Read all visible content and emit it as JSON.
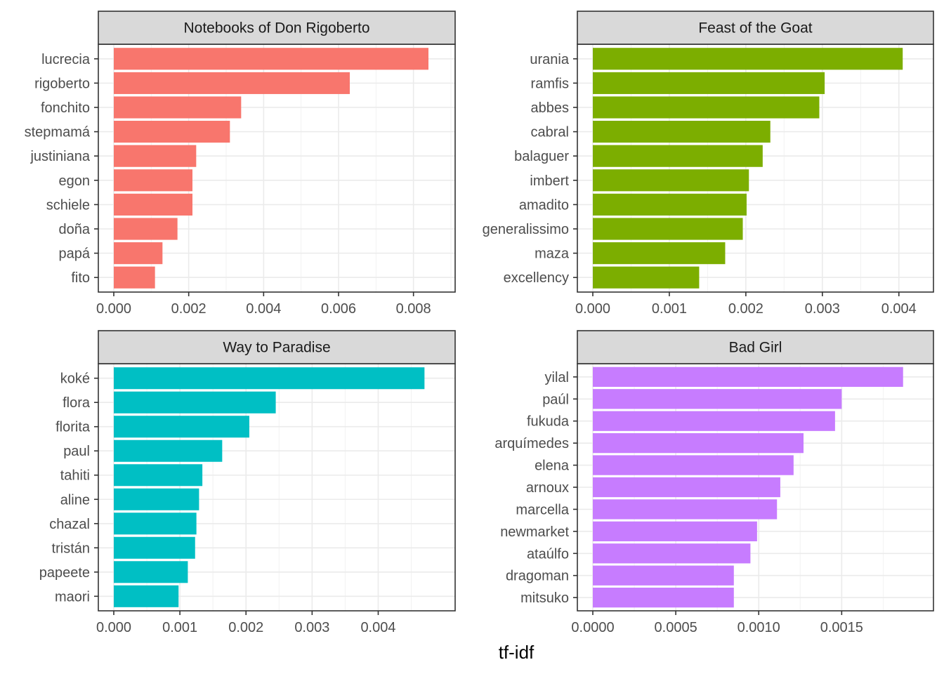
{
  "xlabel": "tf-idf",
  "chart_data": [
    {
      "type": "bar",
      "orientation": "horizontal",
      "title": "Notebooks of Don Rigoberto",
      "color": "#F8766D",
      "categories": [
        "lucrecia",
        "rigoberto",
        "fonchito",
        "stepmamá",
        "justiniana",
        "egon",
        "schiele",
        "doña",
        "papá",
        "fito"
      ],
      "values": [
        0.0084,
        0.0063,
        0.0034,
        0.0031,
        0.0022,
        0.0021,
        0.0021,
        0.0017,
        0.0013,
        0.0011
      ],
      "xlim": [
        0,
        0.0087
      ],
      "xticks": [
        0.0,
        0.002,
        0.004,
        0.006,
        0.008
      ],
      "xtick_labels": [
        "0.000",
        "0.002",
        "0.004",
        "0.006",
        "0.008"
      ],
      "grid": true
    },
    {
      "type": "bar",
      "orientation": "horizontal",
      "title": "Feast of the Goat",
      "color": "#7CAE00",
      "categories": [
        "urania",
        "ramfis",
        "abbes",
        "cabral",
        "balaguer",
        "imbert",
        "amadito",
        "generalissimo",
        "maza",
        "excellency"
      ],
      "values": [
        0.00405,
        0.00303,
        0.00296,
        0.00232,
        0.00222,
        0.00204,
        0.00201,
        0.00196,
        0.00173,
        0.00139
      ],
      "xlim": [
        0,
        0.00425
      ],
      "xticks": [
        0.0,
        0.001,
        0.002,
        0.003,
        0.004
      ],
      "xtick_labels": [
        "0.000",
        "0.001",
        "0.002",
        "0.003",
        "0.004"
      ],
      "grid": true
    },
    {
      "type": "bar",
      "orientation": "horizontal",
      "title": "Way to Paradise",
      "color": "#00BFC4",
      "categories": [
        "koké",
        "flora",
        "florita",
        "paul",
        "tahiti",
        "aline",
        "chazal",
        "tristán",
        "papeete",
        "maori"
      ],
      "values": [
        0.0047,
        0.00245,
        0.00205,
        0.00164,
        0.00134,
        0.00129,
        0.00125,
        0.00123,
        0.00112,
        0.00098
      ],
      "xlim": [
        0,
        0.00493
      ],
      "xticks": [
        0.0,
        0.001,
        0.002,
        0.003,
        0.004
      ],
      "xtick_labels": [
        "0.000",
        "0.001",
        "0.002",
        "0.003",
        "0.004"
      ],
      "grid": true
    },
    {
      "type": "bar",
      "orientation": "horizontal",
      "title": "Bad Girl",
      "color": "#C77CFF",
      "categories": [
        "yilal",
        "paúl",
        "fukuda",
        "arquímedes",
        "elena",
        "arnoux",
        "marcella",
        "newmarket",
        "ataúlfo",
        "dragoman",
        "mitsuko"
      ],
      "values": [
        0.00187,
        0.0015,
        0.00146,
        0.00127,
        0.00121,
        0.00113,
        0.00111,
        0.00099,
        0.00095,
        0.00085,
        0.00085
      ],
      "xlim": [
        0,
        0.00196
      ],
      "xticks": [
        0.0,
        0.0005,
        0.001,
        0.0015
      ],
      "xtick_labels": [
        "0.0000",
        "0.0005",
        "0.0010",
        "0.0015"
      ],
      "grid": true
    }
  ]
}
